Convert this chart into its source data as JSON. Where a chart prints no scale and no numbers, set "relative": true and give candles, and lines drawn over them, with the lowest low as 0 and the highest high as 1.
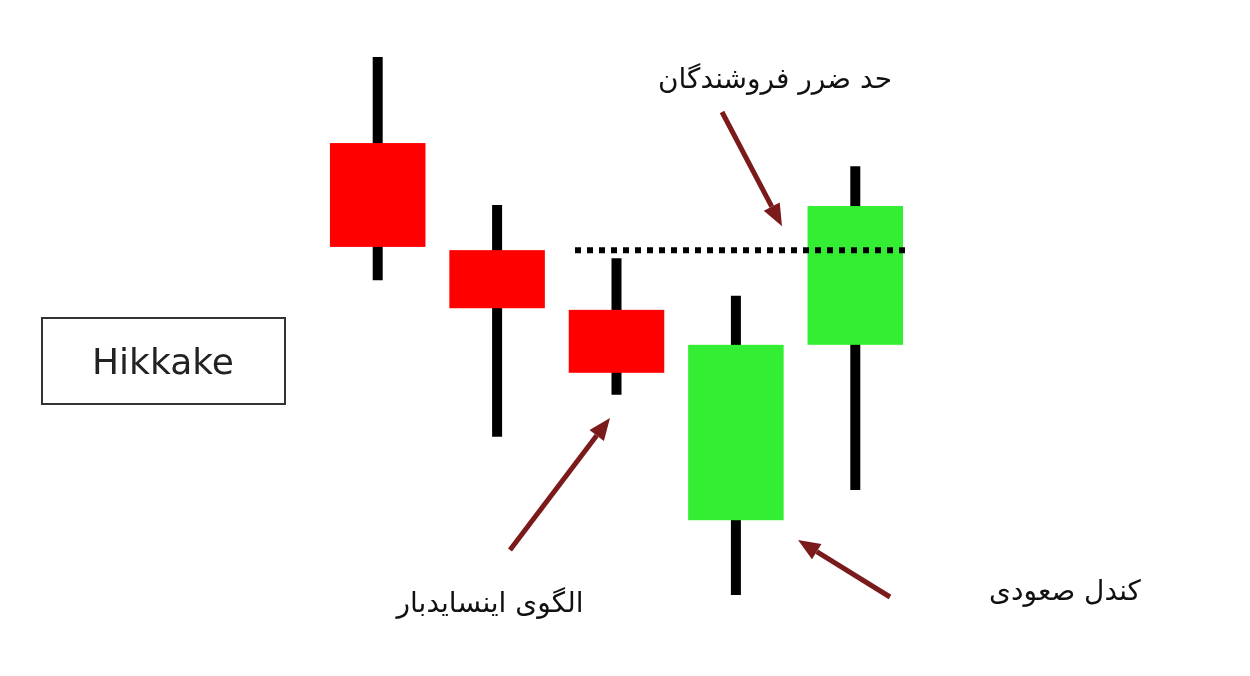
{
  "chart_data": {
    "type": "candlestick",
    "title": "Hikkake",
    "relative": true,
    "categories": [
      null,
      null,
      null,
      null,
      null
    ],
    "ohlc": [
      [
        0.84,
        1,
        0.585,
        0.647
      ],
      [
        0.641,
        0.725,
        0.294,
        0.533
      ],
      [
        0.53,
        0.626,
        0.372,
        0.413
      ],
      [
        0.139,
        0.556,
        0,
        0.465
      ],
      [
        0.465,
        0.797,
        0.195,
        0.723
      ]
    ],
    "colors": [
      "#ff0000",
      "#ff0000",
      "#ff0000",
      "#33ee33",
      "#33ee33"
    ],
    "ref_lines": [
      {
        "axis": "y",
        "value": 0.641,
        "label": "حد ضرر فروشندگان",
        "line_style": "dotted",
        "color": "#000000"
      }
    ],
    "annotations": [
      "الگوی اینسایدبار",
      "کندل صعودی"
    ]
  }
}
